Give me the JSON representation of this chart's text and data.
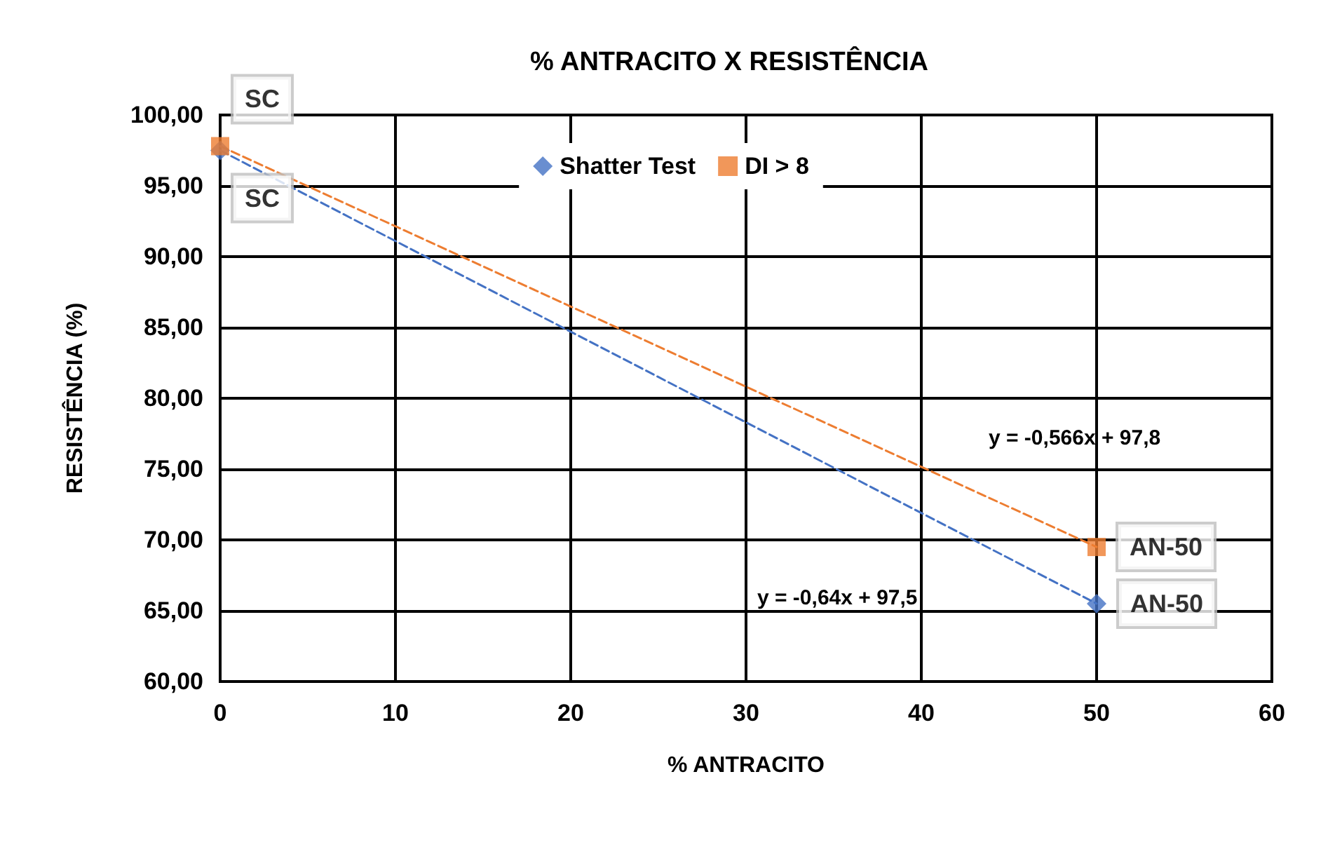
{
  "chart_data": {
    "type": "scatter",
    "title": "% ANTRACITO X RESISTÊNCIA",
    "xlabel": "% ANTRACITO",
    "ylabel": "RESISTÊNCIA (%)",
    "x": [
      0,
      50
    ],
    "series": [
      {
        "name": "Shatter Test",
        "color": "#4472c4",
        "values": [
          97.5,
          65.5
        ],
        "value_labels": [
          "SC",
          "AN-50"
        ],
        "marker": "diamond"
      },
      {
        "name": "DI > 8",
        "color": "#ed7d31",
        "values": [
          97.8,
          69.5
        ],
        "value_labels": [
          "SC",
          "AN-50"
        ],
        "marker": "square"
      },
      {
        "type": "line",
        "color": "#4472c4",
        "values": [
          97.5,
          65.5
        ],
        "line_style": "dashed",
        "marker": "none"
      },
      {
        "type": "line",
        "color": "#ed7d31",
        "values": [
          97.8,
          69.5
        ],
        "line_style": "dashed",
        "marker": "none"
      }
    ],
    "annotations": [
      "y = -0,566x + 97,8",
      "y = -0,64x + 97,5"
    ],
    "xlim": [
      0,
      60
    ],
    "xticks": [
      0,
      10,
      20,
      30,
      40,
      50,
      60
    ],
    "ylim": [
      60,
      100
    ],
    "yticks": [
      {
        "value": 60,
        "label": "60,00"
      },
      {
        "value": 65,
        "label": "65,00"
      },
      {
        "value": 70,
        "label": "70,00"
      },
      {
        "value": 75,
        "label": "75,00"
      },
      {
        "value": 80,
        "label": "80,00"
      },
      {
        "value": 85,
        "label": "85,00"
      },
      {
        "value": 90,
        "label": "90,00"
      },
      {
        "value": 95,
        "label": "95,00"
      },
      {
        "value": 100,
        "label": "100,00"
      }
    ],
    "grid": true,
    "legend": "top"
  }
}
